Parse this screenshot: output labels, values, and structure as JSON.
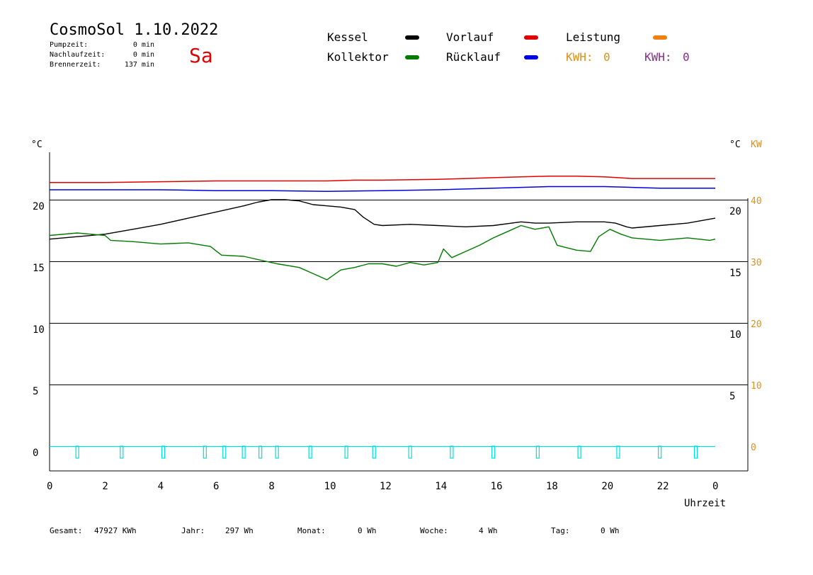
{
  "header": {
    "title": "CosmoSol 1.10.2022",
    "day_of_week": "Sa",
    "stats": [
      {
        "label": "Pumpzeit:",
        "value": "0 min"
      },
      {
        "label": "Nachlaufzeit:",
        "value": "0 min"
      },
      {
        "label": "Brennerzeit:",
        "value": "137 min"
      }
    ]
  },
  "legend": {
    "kessel": {
      "label": "Kessel",
      "color": "#000000"
    },
    "vorlauf": {
      "label": "Vorlauf",
      "color": "#e00000"
    },
    "leistung": {
      "label": "Leistung",
      "color": "#f08010"
    },
    "kollektor": {
      "label": "Kollektor",
      "color": "#007a00"
    },
    "ruecklauf": {
      "label": "Rücklauf",
      "color": "#0000e0"
    },
    "kwh_orange": {
      "label": "KWH:",
      "value": "0",
      "color": "#e0901a"
    },
    "kwh_purple": {
      "label": "KWH:",
      "value": "0",
      "color": "#8a2b8a"
    }
  },
  "footer": [
    {
      "label": "Gesamt:",
      "value": "47927 KWh"
    },
    {
      "label": "Jahr:",
      "value": "297 Wh"
    },
    {
      "label": "Monat:",
      "value": "0 Wh"
    },
    {
      "label": "Woche:",
      "value": "4 Wh"
    },
    {
      "label": "Tag:",
      "value": "0 Wh"
    }
  ],
  "chart_data": {
    "type": "line",
    "xlabel": "Uhrzeit",
    "x_ticks": [
      "0",
      "2",
      "4",
      "6",
      "8",
      "10",
      "12",
      "14",
      "16",
      "18",
      "20",
      "22",
      "0"
    ],
    "xlim": [
      0,
      24
    ],
    "left_unit": "°C",
    "right_unit_temp": "°C",
    "right_unit_power": "KW",
    "left_ticks": [
      "20",
      "15",
      "10",
      "5",
      "0"
    ],
    "right_temp_ticks": [
      "20",
      "15",
      "10",
      "5"
    ],
    "right_power_ticks": [
      "40",
      "30",
      "20",
      "10",
      "0"
    ],
    "ylim_temp": [
      0,
      20
    ],
    "ylim_power": [
      0,
      40
    ],
    "grid": true,
    "series": [
      {
        "name": "Vorlauf",
        "color": "#e00000",
        "axis": "top_band",
        "x": [
          0,
          2,
          4,
          6,
          8,
          10,
          11,
          12,
          14,
          15,
          16,
          17,
          18,
          19,
          20,
          20.5,
          21,
          22,
          23,
          24
        ],
        "y": [
          22.3,
          22.3,
          22.4,
          22.5,
          22.5,
          22.5,
          22.6,
          22.6,
          22.7,
          22.8,
          22.9,
          23.0,
          23.1,
          23.1,
          23.0,
          22.9,
          22.8,
          22.8,
          22.8,
          22.8
        ]
      },
      {
        "name": "Rücklauf",
        "color": "#0000e0",
        "axis": "top_band",
        "x": [
          0,
          2,
          4,
          6,
          8,
          10,
          12,
          14,
          16,
          17,
          18,
          19,
          20,
          21,
          22,
          23,
          24
        ],
        "y": [
          21.4,
          21.4,
          21.4,
          21.3,
          21.3,
          21.2,
          21.3,
          21.4,
          21.6,
          21.7,
          21.8,
          21.8,
          21.8,
          21.7,
          21.6,
          21.6,
          21.6
        ]
      },
      {
        "name": "Kessel",
        "color": "#000000",
        "axis": "temp",
        "x": [
          0,
          1,
          2,
          3,
          4,
          5,
          6,
          7,
          7.5,
          8,
          8.5,
          9,
          9.5,
          10,
          10.5,
          11,
          11.3,
          11.5,
          11.7,
          12,
          13,
          14,
          15,
          16,
          17,
          17.5,
          18,
          19,
          20,
          20.4,
          20.8,
          21,
          22,
          23,
          24
        ],
        "y": [
          16.8,
          17.0,
          17.2,
          17.6,
          18.0,
          18.5,
          19.0,
          19.5,
          19.8,
          20.0,
          20.0,
          19.9,
          19.6,
          19.5,
          19.4,
          19.2,
          18.6,
          18.3,
          18.0,
          17.9,
          18.0,
          17.9,
          17.8,
          17.9,
          18.2,
          18.1,
          18.1,
          18.2,
          18.2,
          18.1,
          17.8,
          17.7,
          17.9,
          18.1,
          18.5
        ]
      },
      {
        "name": "Kollektor",
        "color": "#007a00",
        "axis": "temp",
        "x": [
          0,
          1,
          2,
          2.2,
          3,
          4,
          5,
          5.8,
          6.2,
          7,
          7.6,
          8.2,
          9,
          9.5,
          10,
          10.5,
          11,
          11.5,
          12,
          12.5,
          13,
          13.5,
          14,
          14.2,
          14.5,
          15,
          15.5,
          16,
          16.5,
          17,
          17.5,
          18,
          18.3,
          19,
          19.5,
          19.8,
          20.2,
          20.6,
          21,
          22,
          23,
          23.8,
          24
        ],
        "y": [
          17.1,
          17.3,
          17.1,
          16.7,
          16.6,
          16.4,
          16.5,
          16.2,
          15.5,
          15.4,
          15.1,
          14.8,
          14.5,
          14.0,
          13.5,
          14.3,
          14.5,
          14.8,
          14.8,
          14.6,
          14.9,
          14.7,
          14.9,
          16.0,
          15.3,
          15.8,
          16.3,
          16.9,
          17.4,
          17.9,
          17.6,
          17.8,
          16.3,
          15.9,
          15.8,
          17.0,
          17.6,
          17.2,
          16.9,
          16.7,
          16.9,
          16.7,
          16.8
        ]
      },
      {
        "name": "Leistung",
        "color": "#00dede",
        "axis": "power",
        "pulse_hours": [
          1.0,
          2.6,
          4.1,
          5.6,
          6.3,
          7.0,
          7.6,
          8.2,
          9.4,
          10.7,
          11.7,
          13.0,
          14.5,
          16.0,
          17.6,
          19.1,
          20.5,
          22.0,
          23.3
        ],
        "baseline": 0
      }
    ]
  }
}
